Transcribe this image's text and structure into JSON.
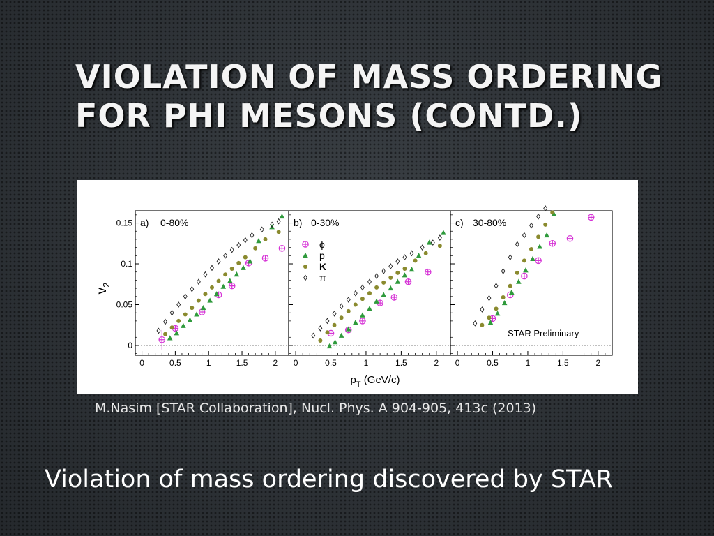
{
  "slide": {
    "title_line1": "Violation of Mass Ordering",
    "title_line2": "for Phi Mesons (contd.)",
    "citation": "M.Nasim [STAR Collaboration], Nucl. Phys. A 904-905, 413c (2013)",
    "bottom_text": "Violation of mass ordering discovered by STAR"
  },
  "colors": {
    "phi": "#d633d6",
    "proton": "#2f9a3c",
    "kaon": "#8a8a2e",
    "pion": "#222222"
  },
  "chart_data": {
    "type": "scatter",
    "ylabel": "v",
    "ylabel_sub": "2",
    "xlabel_main": "p",
    "xlabel_sub": "T",
    "xlabel_unit": " (GeV/c)",
    "ylim": [
      -0.012,
      0.165
    ],
    "yticks": [
      0,
      0.05,
      0.1,
      0.15
    ],
    "ytick_labels": [
      "0",
      "0.05",
      "0.1",
      "0.15"
    ],
    "xticks": [
      0,
      0.5,
      1,
      1.5,
      2
    ],
    "xtick_labels": [
      "0",
      "0.5",
      "1",
      "1.5",
      "2"
    ],
    "legend": {
      "placement": "upper-left of panel b",
      "entries": [
        {
          "key": "phi",
          "label": "ϕ",
          "marker": "cross"
        },
        {
          "key": "proton",
          "label": "p",
          "marker": "triangle"
        },
        {
          "key": "kaon",
          "label": "K",
          "marker": "circle"
        },
        {
          "key": "pion",
          "label": "π",
          "marker": "diamond"
        }
      ]
    },
    "panels": [
      {
        "id": "a",
        "label": "a)",
        "centrality": "0-80%",
        "xlim": [
          -0.1,
          2.2
        ],
        "series": [
          {
            "key": "phi",
            "x": [
              0.3,
              0.5,
              0.9,
              1.15,
              1.35,
              1.6,
              1.85,
              2.1
            ],
            "y": [
              0.007,
              0.021,
              0.041,
              0.062,
              0.073,
              0.101,
              0.107,
              0.119
            ]
          },
          {
            "key": "proton",
            "x": [
              0.42,
              0.52,
              0.62,
              0.72,
              0.82,
              0.92,
              1.02,
              1.12,
              1.22,
              1.32,
              1.42,
              1.52,
              1.62,
              1.75,
              1.95,
              2.1
            ],
            "y": [
              0.009,
              0.015,
              0.024,
              0.031,
              0.038,
              0.046,
              0.055,
              0.063,
              0.072,
              0.079,
              0.087,
              0.095,
              0.103,
              0.128,
              0.145,
              0.158
            ]
          },
          {
            "key": "kaon",
            "x": [
              0.35,
              0.45,
              0.55,
              0.65,
              0.75,
              0.85,
              0.95,
              1.05,
              1.15,
              1.25,
              1.35,
              1.45,
              1.55,
              1.7,
              1.85,
              2.05
            ],
            "y": [
              0.014,
              0.022,
              0.03,
              0.038,
              0.046,
              0.055,
              0.063,
              0.071,
              0.079,
              0.087,
              0.094,
              0.101,
              0.108,
              0.119,
              0.13,
              0.139
            ]
          },
          {
            "key": "pion",
            "x": [
              0.25,
              0.35,
              0.45,
              0.55,
              0.65,
              0.75,
              0.85,
              0.95,
              1.05,
              1.15,
              1.25,
              1.35,
              1.45,
              1.55,
              1.65,
              1.8,
              1.95,
              2.05
            ],
            "y": [
              0.018,
              0.029,
              0.04,
              0.05,
              0.06,
              0.069,
              0.078,
              0.087,
              0.095,
              0.103,
              0.11,
              0.117,
              0.123,
              0.129,
              0.135,
              0.142,
              0.148,
              0.152
            ]
          }
        ]
      },
      {
        "id": "b",
        "label": "b)",
        "centrality": "0-30%",
        "xlim": [
          -0.1,
          2.2
        ],
        "series": [
          {
            "key": "phi",
            "x": [
              0.5,
              0.75,
              0.95,
              1.2,
              1.4,
              1.6,
              1.88
            ],
            "y": [
              0.015,
              0.019,
              0.03,
              0.052,
              0.059,
              0.078,
              0.09
            ]
          },
          {
            "key": "proton",
            "x": [
              0.48,
              0.56,
              0.65,
              0.75,
              0.85,
              0.95,
              1.05,
              1.15,
              1.25,
              1.35,
              1.45,
              1.55,
              1.65,
              1.75,
              1.9,
              2.1
            ],
            "y": [
              -0.001,
              0.004,
              0.012,
              0.02,
              0.028,
              0.037,
              0.045,
              0.054,
              0.062,
              0.07,
              0.078,
              0.086,
              0.093,
              0.11,
              0.126,
              0.138
            ]
          },
          {
            "key": "kaon",
            "x": [
              0.35,
              0.45,
              0.55,
              0.65,
              0.75,
              0.85,
              0.95,
              1.05,
              1.15,
              1.25,
              1.35,
              1.45,
              1.55,
              1.7,
              1.85,
              2.05
            ],
            "y": [
              0.006,
              0.016,
              0.025,
              0.034,
              0.042,
              0.05,
              0.057,
              0.064,
              0.071,
              0.077,
              0.083,
              0.089,
              0.094,
              0.104,
              0.113,
              0.122
            ]
          },
          {
            "key": "pion",
            "x": [
              0.25,
              0.35,
              0.45,
              0.55,
              0.65,
              0.75,
              0.85,
              0.95,
              1.05,
              1.15,
              1.25,
              1.35,
              1.45,
              1.55,
              1.65,
              1.8,
              1.95,
              2.05
            ],
            "y": [
              0.012,
              0.021,
              0.03,
              0.039,
              0.048,
              0.056,
              0.064,
              0.071,
              0.078,
              0.085,
              0.091,
              0.097,
              0.103,
              0.108,
              0.113,
              0.12,
              0.126,
              0.132
            ]
          }
        ]
      },
      {
        "id": "c",
        "label": "c)",
        "centrality": "30-80%",
        "xlim": [
          -0.1,
          2.2
        ],
        "annotation": "STAR Preliminary",
        "series": [
          {
            "key": "phi",
            "x": [
              0.5,
              0.75,
              0.95,
              1.15,
              1.35,
              1.6,
              1.9
            ],
            "y": [
              0.033,
              0.062,
              0.085,
              0.104,
              0.125,
              0.131,
              0.157
            ]
          },
          {
            "key": "proton",
            "x": [
              0.47,
              0.57,
              0.67,
              0.77,
              0.87,
              0.97,
              1.07,
              1.17,
              1.27,
              1.37
            ],
            "y": [
              0.028,
              0.039,
              0.052,
              0.065,
              0.078,
              0.092,
              0.106,
              0.121,
              0.135,
              0.161
            ]
          },
          {
            "key": "kaon",
            "x": [
              0.35,
              0.45,
              0.55,
              0.65,
              0.75,
              0.85,
              0.95,
              1.05,
              1.15,
              1.25,
              1.35
            ],
            "y": [
              0.025,
              0.034,
              0.045,
              0.059,
              0.073,
              0.089,
              0.104,
              0.118,
              0.133,
              0.148,
              0.163
            ]
          },
          {
            "key": "pion",
            "x": [
              0.25,
              0.35,
              0.45,
              0.55,
              0.65,
              0.75,
              0.85,
              0.95,
              1.05,
              1.15,
              1.25
            ],
            "y": [
              0.027,
              0.044,
              0.058,
              0.073,
              0.091,
              0.108,
              0.124,
              0.135,
              0.147,
              0.158,
              0.168
            ]
          }
        ]
      }
    ]
  }
}
